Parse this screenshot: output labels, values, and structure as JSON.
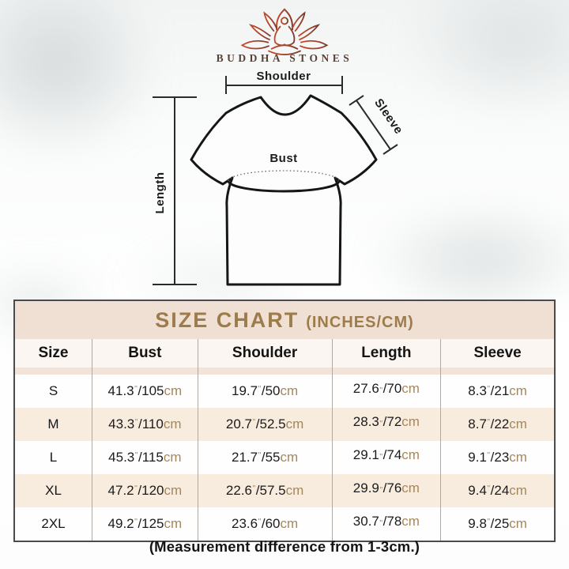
{
  "brand": {
    "name": "BUDDHA STONES"
  },
  "diagram": {
    "labels": {
      "shoulder": "Shoulder",
      "sleeve": "Sleeve",
      "bust": "Bust",
      "length": "Length"
    }
  },
  "size_chart": {
    "title": "SIZE CHART",
    "title_suffix": "(INCHES/CM)",
    "columns": [
      "Size",
      "Bust",
      "Shoulder",
      "Length",
      "Sleeve"
    ],
    "unit_inch_mark": "\"",
    "unit_cm": "cm",
    "rows": [
      {
        "size": "S",
        "bust": {
          "in": "41.3",
          "cm": "105"
        },
        "shoulder": {
          "in": "19.7",
          "cm": "50"
        },
        "length": {
          "in": "27.6",
          "cm": "70"
        },
        "sleeve": {
          "in": "8.3",
          "cm": "21"
        }
      },
      {
        "size": "M",
        "bust": {
          "in": "43.3",
          "cm": "110"
        },
        "shoulder": {
          "in": "20.7",
          "cm": "52.5"
        },
        "length": {
          "in": "28.3",
          "cm": "72"
        },
        "sleeve": {
          "in": "8.7",
          "cm": "22"
        }
      },
      {
        "size": "L",
        "bust": {
          "in": "45.3",
          "cm": "115"
        },
        "shoulder": {
          "in": "21.7",
          "cm": "55"
        },
        "length": {
          "in": "29.1",
          "cm": "74"
        },
        "sleeve": {
          "in": "9.1",
          "cm": "23"
        }
      },
      {
        "size": "XL",
        "bust": {
          "in": "47.2",
          "cm": "120"
        },
        "shoulder": {
          "in": "22.6",
          "cm": "57.5"
        },
        "length": {
          "in": "29.9",
          "cm": "76"
        },
        "sleeve": {
          "in": "9.4",
          "cm": "24"
        }
      },
      {
        "size": "2XL",
        "bust": {
          "in": "49.2",
          "cm": "125"
        },
        "shoulder": {
          "in": "23.6",
          "cm": "60"
        },
        "length": {
          "in": "30.7",
          "cm": "78"
        },
        "sleeve": {
          "in": "9.8",
          "cm": "25"
        }
      }
    ]
  },
  "footer": {
    "note": "(Measurement difference from 1-3cm.)"
  },
  "colors": {
    "accent_gold": "#9d7c4c",
    "title_bg": "#f0dfd3",
    "row_alt_bg": "#f8ecdf",
    "table_border": "#4b4b4b",
    "unit_text": "#a5885a",
    "brand_text": "#5a3f34",
    "logo_gradient_start": "#c54a2c",
    "logo_gradient_end": "#7c3a2c"
  },
  "chart_data": {
    "type": "table",
    "title": "SIZE CHART (INCHES/CM)",
    "columns": [
      "Size",
      "Bust",
      "Shoulder",
      "Length",
      "Sleeve"
    ],
    "rows": [
      [
        "S",
        "41.3\"/105cm",
        "19.7\"/50cm",
        "27.6\"/70cm",
        "8.3\"/21cm"
      ],
      [
        "M",
        "43.3\"/110cm",
        "20.7\"/52.5cm",
        "28.3\"/72cm",
        "8.7\"/22cm"
      ],
      [
        "L",
        "45.3\"/115cm",
        "21.7\"/55cm",
        "29.1\"/74cm",
        "9.1\"/23cm"
      ],
      [
        "XL",
        "47.2\"/120cm",
        "22.6\"/57.5cm",
        "29.9\"/76cm",
        "9.4\"/24cm"
      ],
      [
        "2XL",
        "49.2\"/125cm",
        "23.6\"/60cm",
        "30.7\"/78cm",
        "9.8\"/25cm"
      ]
    ],
    "note": "(Measurement difference from 1-3cm.)"
  }
}
